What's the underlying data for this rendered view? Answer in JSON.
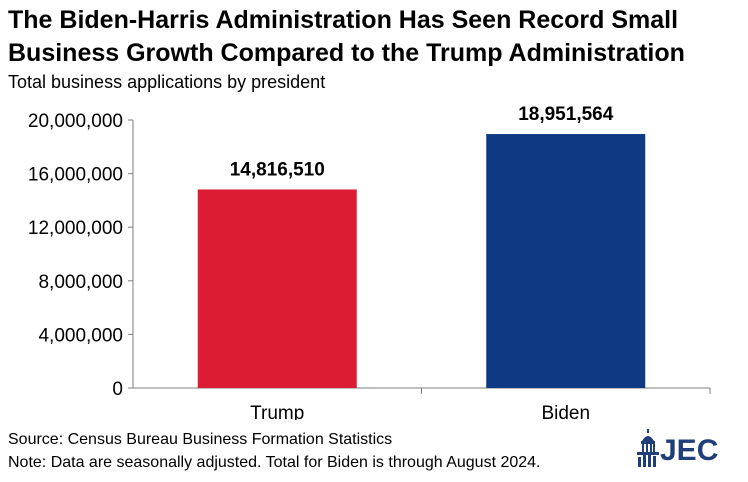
{
  "title_line1": "The Biden-Harris Administration Has Seen Record Small",
  "title_line2": "Business Growth Compared to the Trump Administration",
  "subtitle": "Total business applications by president",
  "source": "Source: Census Bureau Business Formation Statistics",
  "note": "Note: Data are seasonally adjusted. Total for Biden is through August 2024.",
  "logo": {
    "text": "JEC",
    "icon": "capitol-dome-icon",
    "color": "#1f3e7a"
  },
  "chart_data": {
    "type": "bar",
    "categories": [
      "Trump",
      "Biden"
    ],
    "values": [
      14816510,
      18951564
    ],
    "value_labels": [
      "14,816,510",
      "18,951,564"
    ],
    "bar_colors": [
      "#dc1c35",
      "#0d3a82"
    ],
    "ylim": [
      0,
      20000000
    ],
    "yticks": [
      0,
      4000000,
      8000000,
      12000000,
      16000000,
      20000000
    ],
    "ytick_labels": [
      "0",
      "4,000,000",
      "8,000,000",
      "12,000,000",
      "16,000,000",
      "20,000,000"
    ],
    "grid": false,
    "legend": "none"
  }
}
